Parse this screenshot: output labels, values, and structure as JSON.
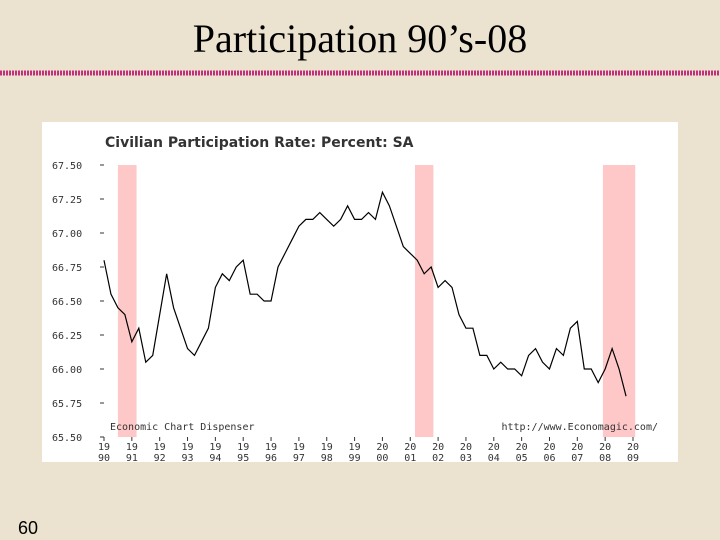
{
  "slide_title": "Participation 90’s-08",
  "page_number": "60",
  "chart_data": {
    "type": "line",
    "title": "Civilian Participation Rate: Percent: SA",
    "annotations": [
      "Economic Chart Dispenser",
      "http://www.Economagic.com/"
    ],
    "x": [
      1990,
      1990.25,
      1990.5,
      1990.75,
      1991,
      1991.25,
      1991.5,
      1991.75,
      1992,
      1992.25,
      1992.5,
      1992.75,
      1993,
      1993.25,
      1993.5,
      1993.75,
      1994,
      1994.25,
      1994.5,
      1994.75,
      1995,
      1995.25,
      1995.5,
      1995.75,
      1996,
      1996.25,
      1996.5,
      1996.75,
      1997,
      1997.25,
      1997.5,
      1997.75,
      1998,
      1998.25,
      1998.5,
      1998.75,
      1999,
      1999.25,
      1999.5,
      1999.75,
      2000,
      2000.25,
      2000.5,
      2000.75,
      2001,
      2001.25,
      2001.5,
      2001.75,
      2002,
      2002.25,
      2002.5,
      2002.75,
      2003,
      2003.25,
      2003.5,
      2003.75,
      2004,
      2004.25,
      2004.5,
      2004.75,
      2005,
      2005.25,
      2005.5,
      2005.75,
      2006,
      2006.25,
      2006.5,
      2006.75,
      2007,
      2007.25,
      2007.5,
      2007.75,
      2008,
      2008.25,
      2008.5,
      2008.75
    ],
    "series": [
      {
        "name": "Civilian Participation Rate",
        "color": "#000000",
        "values": [
          66.8,
          66.55,
          66.45,
          66.4,
          66.2,
          66.3,
          66.05,
          66.1,
          66.4,
          66.7,
          66.45,
          66.3,
          66.15,
          66.1,
          66.2,
          66.3,
          66.6,
          66.7,
          66.65,
          66.75,
          66.8,
          66.55,
          66.55,
          66.5,
          66.5,
          66.75,
          66.85,
          66.95,
          67.05,
          67.1,
          67.1,
          67.15,
          67.1,
          67.05,
          67.1,
          67.2,
          67.1,
          67.1,
          67.15,
          67.1,
          67.3,
          67.2,
          67.05,
          66.9,
          66.85,
          66.8,
          66.7,
          66.75,
          66.6,
          66.65,
          66.6,
          66.4,
          66.3,
          66.3,
          66.1,
          66.1,
          66.0,
          66.05,
          66.0,
          66.0,
          65.95,
          66.1,
          66.15,
          66.05,
          66.0,
          66.15,
          66.1,
          66.3,
          66.35,
          66.0,
          66.0,
          65.9,
          66.0,
          66.15,
          66.0,
          65.8
        ]
      }
    ],
    "recessions": [
      [
        1990.5,
        1991.17
      ],
      [
        2001.17,
        2001.83
      ],
      [
        2007.92,
        2009.08
      ]
    ],
    "recession_color": "#ffc8c8",
    "xlim": [
      1990,
      2009
    ],
    "xticks": [
      {
        "value": 1990,
        "label": [
          "19",
          "90"
        ]
      },
      {
        "value": 1991,
        "label": [
          "19",
          "91"
        ]
      },
      {
        "value": 1992,
        "label": [
          "19",
          "92"
        ]
      },
      {
        "value": 1993,
        "label": [
          "19",
          "93"
        ]
      },
      {
        "value": 1994,
        "label": [
          "19",
          "94"
        ]
      },
      {
        "value": 1995,
        "label": [
          "19",
          "95"
        ]
      },
      {
        "value": 1996,
        "label": [
          "19",
          "96"
        ]
      },
      {
        "value": 1997,
        "label": [
          "19",
          "97"
        ]
      },
      {
        "value": 1998,
        "label": [
          "19",
          "98"
        ]
      },
      {
        "value": 1999,
        "label": [
          "19",
          "99"
        ]
      },
      {
        "value": 2000,
        "label": [
          "20",
          "00"
        ]
      },
      {
        "value": 2001,
        "label": [
          "20",
          "01"
        ]
      },
      {
        "value": 2002,
        "label": [
          "20",
          "02"
        ]
      },
      {
        "value": 2003,
        "label": [
          "20",
          "03"
        ]
      },
      {
        "value": 2004,
        "label": [
          "20",
          "04"
        ]
      },
      {
        "value": 2005,
        "label": [
          "20",
          "05"
        ]
      },
      {
        "value": 2006,
        "label": [
          "20",
          "06"
        ]
      },
      {
        "value": 2007,
        "label": [
          "20",
          "07"
        ]
      },
      {
        "value": 2008,
        "label": [
          "20",
          "08"
        ]
      },
      {
        "value": 2009,
        "label": [
          "20",
          "09"
        ]
      }
    ],
    "ylim": [
      65.5,
      67.5
    ],
    "yticks": [
      {
        "value": 65.5,
        "label": "65.50"
      },
      {
        "value": 65.75,
        "label": "65.75"
      },
      {
        "value": 66,
        "label": "66.00"
      },
      {
        "value": 66.25,
        "label": "66.25"
      },
      {
        "value": 66.5,
        "label": "66.50"
      },
      {
        "value": 66.75,
        "label": "66.75"
      },
      {
        "value": 67,
        "label": "67.00"
      },
      {
        "value": 67.25,
        "label": "67.25"
      },
      {
        "value": 67.5,
        "label": "67.50"
      }
    ]
  }
}
